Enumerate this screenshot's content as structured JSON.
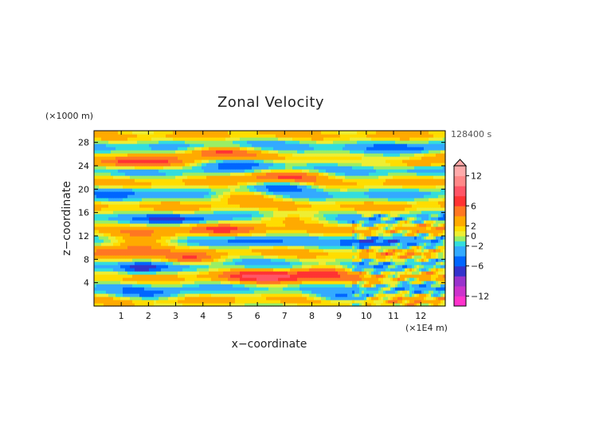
{
  "chart_data": {
    "type": "heatmap",
    "title": "Zonal Velocity",
    "xlabel": "x−coordinate",
    "ylabel": "z−coordinate",
    "x_unit": "(×1E4 m)",
    "y_unit": "(×1000 m)",
    "time_label": "128400 s",
    "xlim": [
      0,
      12.9
    ],
    "ylim": [
      0,
      30
    ],
    "x_ticks": [
      1,
      2,
      3,
      4,
      5,
      6,
      7,
      8,
      9,
      10,
      11,
      12
    ],
    "y_ticks": [
      4,
      8,
      12,
      16,
      20,
      24,
      28
    ],
    "colorbar": {
      "tick_values": [
        12,
        6,
        2,
        0,
        -2,
        -6,
        -12
      ],
      "tick_labels": [
        "12",
        "6",
        "2",
        "0",
        "−2",
        "−6",
        "−12"
      ],
      "range": [
        -14,
        14
      ],
      "levels": [
        {
          "min": -14,
          "max": -12,
          "color": "#ff33cc"
        },
        {
          "min": -12,
          "max": -10,
          "color": "#cc33cc"
        },
        {
          "min": -10,
          "max": -8,
          "color": "#9933cc"
        },
        {
          "min": -8,
          "max": -6,
          "color": "#3333cc"
        },
        {
          "min": -6,
          "max": -4,
          "color": "#0066ff"
        },
        {
          "min": -4,
          "max": -2,
          "color": "#33aaff"
        },
        {
          "min": -2,
          "max": -1,
          "color": "#33dddd"
        },
        {
          "min": -1,
          "max": 0,
          "color": "#99ee66"
        },
        {
          "min": 0,
          "max": 1,
          "color": "#eeee33"
        },
        {
          "min": 1,
          "max": 2,
          "color": "#ffdd00"
        },
        {
          "min": 2,
          "max": 4,
          "color": "#ffaa00"
        },
        {
          "min": 4,
          "max": 6,
          "color": "#ff7722"
        },
        {
          "min": 6,
          "max": 8,
          "color": "#ff3333"
        },
        {
          "min": 8,
          "max": 10,
          "color": "#ff5566"
        },
        {
          "min": 10,
          "max": 12,
          "color": "#ff8888"
        },
        {
          "min": 12,
          "max": 14,
          "color": "#ffaaaa"
        }
      ]
    },
    "field_features": [
      {
        "x": 6.5,
        "z": 5.0,
        "sx": 1.6,
        "sz": 1.3,
        "amp": 7
      },
      {
        "x": 8.5,
        "z": 6.0,
        "sx": 1.0,
        "sz": 1.2,
        "amp": 5
      },
      {
        "x": 1.5,
        "z": 10.5,
        "sx": 1.3,
        "sz": 1.8,
        "amp": 6
      },
      {
        "x": 1.7,
        "z": 6.5,
        "sx": 0.8,
        "sz": 1.0,
        "amp": -6
      },
      {
        "x": 3.5,
        "z": 8.0,
        "sx": 1.0,
        "sz": 0.9,
        "amp": 5
      },
      {
        "x": 4.5,
        "z": 13.0,
        "sx": 1.4,
        "sz": 1.0,
        "amp": 4
      },
      {
        "x": 6.0,
        "z": 11.0,
        "sx": 1.0,
        "sz": 0.8,
        "amp": -4
      },
      {
        "x": 10.0,
        "z": 11.0,
        "sx": 1.0,
        "sz": 0.8,
        "amp": -5
      },
      {
        "x": 3.0,
        "z": 15.0,
        "sx": 1.5,
        "sz": 0.8,
        "amp": -4
      },
      {
        "x": 7.0,
        "z": 15.0,
        "sx": 1.5,
        "sz": 0.9,
        "amp": 4
      },
      {
        "x": 1.0,
        "z": 19.5,
        "sx": 1.2,
        "sz": 1.0,
        "amp": -3
      },
      {
        "x": 5.5,
        "z": 19.0,
        "sx": 1.2,
        "sz": 0.9,
        "amp": 4
      },
      {
        "x": 7.0,
        "z": 20.5,
        "sx": 1.2,
        "sz": 0.8,
        "amp": -5
      },
      {
        "x": 1.5,
        "z": 24.5,
        "sx": 1.5,
        "sz": 1.0,
        "amp": 6
      },
      {
        "x": 4.5,
        "z": 26.5,
        "sx": 1.3,
        "sz": 0.9,
        "amp": 6
      },
      {
        "x": 5.5,
        "z": 24.5,
        "sx": 1.2,
        "sz": 0.8,
        "amp": -5
      },
      {
        "x": 7.0,
        "z": 22.5,
        "sx": 1.6,
        "sz": 0.9,
        "amp": 6
      },
      {
        "x": 10.5,
        "z": 25.0,
        "sx": 2.0,
        "sz": 1.0,
        "amp": -3
      },
      {
        "x": 12.0,
        "z": 24.5,
        "sx": 1.2,
        "sz": 0.8,
        "amp": 5
      },
      {
        "x": 11.5,
        "z": 27.0,
        "sx": 1.5,
        "sz": 0.8,
        "amp": -3
      },
      {
        "x": 2.0,
        "z": 2.0,
        "sx": 1.2,
        "sz": 1.0,
        "amp": -3
      },
      {
        "x": 9.0,
        "z": 1.5,
        "sx": 1.0,
        "sz": 0.8,
        "amp": -4
      }
    ]
  }
}
